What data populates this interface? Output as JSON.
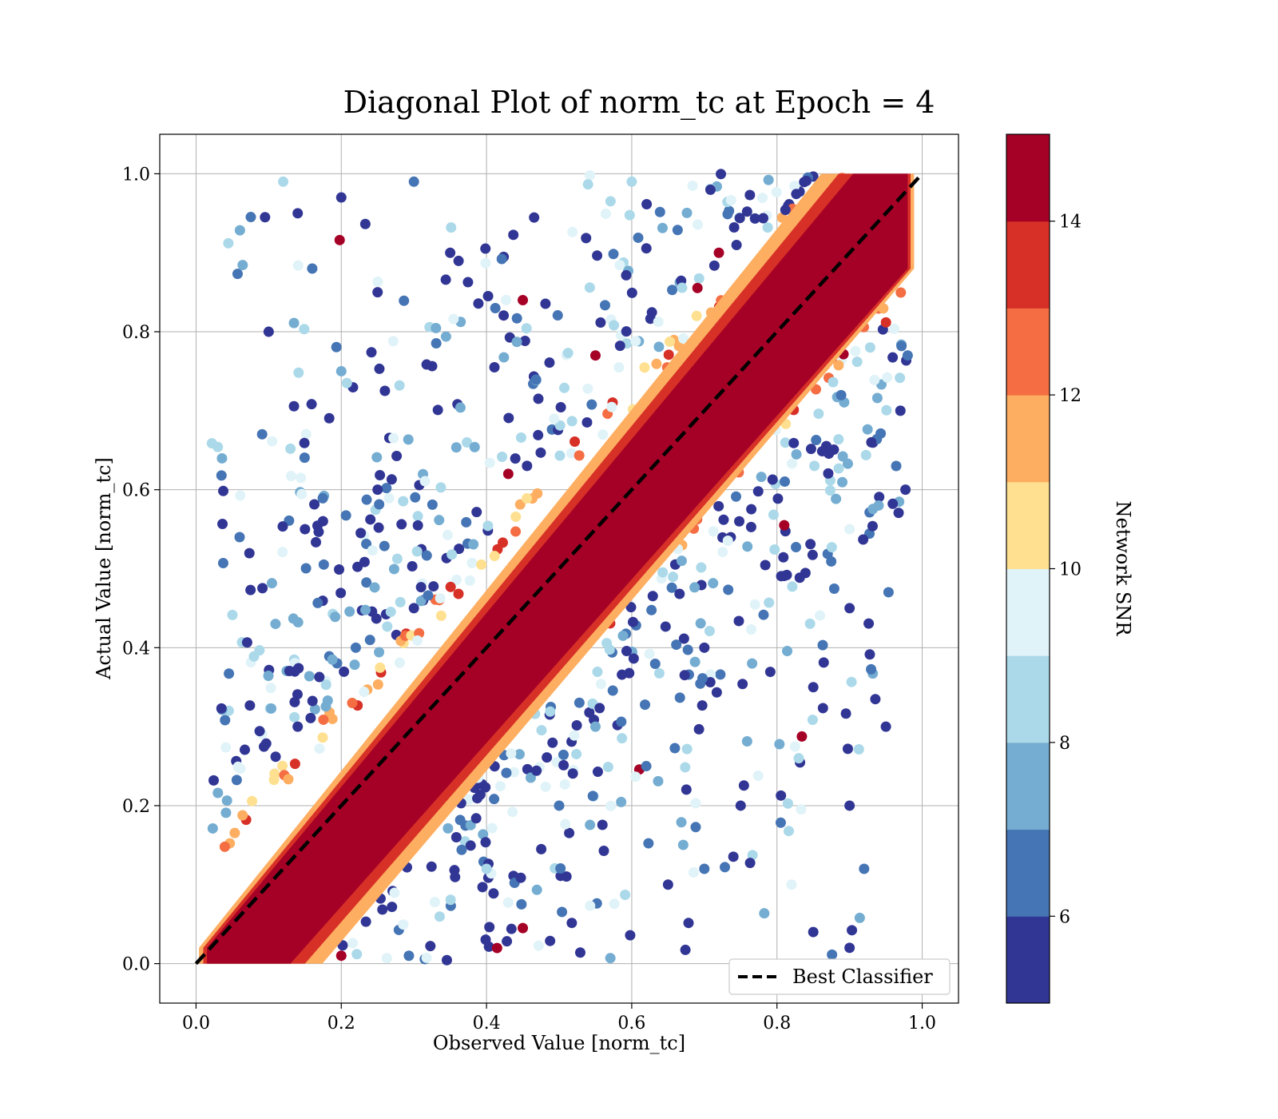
{
  "chart_data": {
    "type": "scatter",
    "title": "Diagonal Plot of norm_tc at Epoch = 4",
    "xlabel": "Observed Value [norm_tc]",
    "ylabel": "Actual Value [norm_tc]",
    "xlim": [
      -0.05,
      1.05
    ],
    "ylim": [
      -0.05,
      1.05
    ],
    "xticks": [
      "0.0",
      "0.2",
      "0.4",
      "0.6",
      "0.8",
      "1.0"
    ],
    "yticks": [
      "0.0",
      "0.2",
      "0.4",
      "0.6",
      "0.8",
      "1.0"
    ],
    "grid": true,
    "legend": {
      "position": "bottom-right",
      "entries": [
        "Best Classifier"
      ]
    },
    "reference_line": {
      "name": "Best Classifier",
      "style": "dashed",
      "color": "#000000",
      "x": [
        0,
        1
      ],
      "y": [
        0,
        1
      ]
    },
    "colorbar": {
      "label": "Network SNR",
      "range": [
        5,
        15
      ],
      "ticks": [
        "6",
        "8",
        "10",
        "12",
        "14"
      ],
      "colormap": "RdYlBu_r",
      "colors": [
        "#313695",
        "#4575b4",
        "#74add1",
        "#abd9e9",
        "#e0f3f8",
        "#fee090",
        "#fdae61",
        "#f46d43",
        "#d73027",
        "#a50026"
      ]
    },
    "density_band": {
      "description_value": "high-SNR points concentrated along y = x",
      "half_width": 0.1,
      "snr": 15
    },
    "sample_points": [
      [
        0.035,
        0.618,
        6
      ],
      [
        0.035,
        0.323,
        5
      ],
      [
        0.06,
        0.54,
        6
      ],
      [
        0.075,
        0.473,
        5
      ],
      [
        0.095,
        0.945,
        5
      ],
      [
        0.1,
        0.8,
        5
      ],
      [
        0.12,
        0.99,
        8
      ],
      [
        0.14,
        0.95,
        5
      ],
      [
        0.16,
        0.88,
        6
      ],
      [
        0.2,
        0.97,
        5
      ],
      [
        0.25,
        0.85,
        5
      ],
      [
        0.3,
        0.99,
        6
      ],
      [
        0.35,
        0.9,
        5
      ],
      [
        0.45,
        0.84,
        15
      ],
      [
        0.55,
        0.77,
        15
      ],
      [
        0.6,
        0.99,
        8
      ],
      [
        0.72,
        0.9,
        15
      ],
      [
        0.6,
        0.62,
        6
      ],
      [
        0.43,
        0.62,
        15
      ],
      [
        0.2,
        0.75,
        7
      ],
      [
        0.25,
        0.6,
        5
      ],
      [
        0.15,
        0.55,
        5
      ],
      [
        0.3,
        0.45,
        5
      ],
      [
        0.22,
        0.4,
        6
      ],
      [
        0.14,
        0.3,
        5
      ],
      [
        0.81,
        0.555,
        14
      ],
      [
        0.9,
        0.55,
        9
      ],
      [
        0.94,
        0.58,
        7
      ],
      [
        0.9,
        0.45,
        5
      ],
      [
        0.85,
        0.35,
        5
      ],
      [
        0.95,
        0.3,
        5
      ],
      [
        0.9,
        0.2,
        5
      ],
      [
        0.92,
        0.12,
        6
      ],
      [
        0.85,
        0.04,
        5
      ],
      [
        0.9,
        0.02,
        5
      ],
      [
        0.75,
        0.2,
        5
      ],
      [
        0.7,
        0.12,
        6
      ],
      [
        0.65,
        0.1,
        5
      ],
      [
        0.82,
        0.1,
        9
      ],
      [
        0.62,
        0.25,
        6
      ],
      [
        0.55,
        0.3,
        7
      ],
      [
        0.45,
        0.045,
        15
      ],
      [
        0.2,
        0.01,
        15
      ],
      [
        0.5,
        0.2,
        6
      ],
      [
        0.4,
        0.12,
        8
      ],
      [
        0.83,
        0.26,
        8
      ],
      [
        0.97,
        0.7,
        5
      ],
      [
        0.98,
        0.77,
        6
      ],
      [
        0.93,
        0.66,
        5
      ],
      [
        0.7,
        0.4,
        5
      ]
    ]
  }
}
